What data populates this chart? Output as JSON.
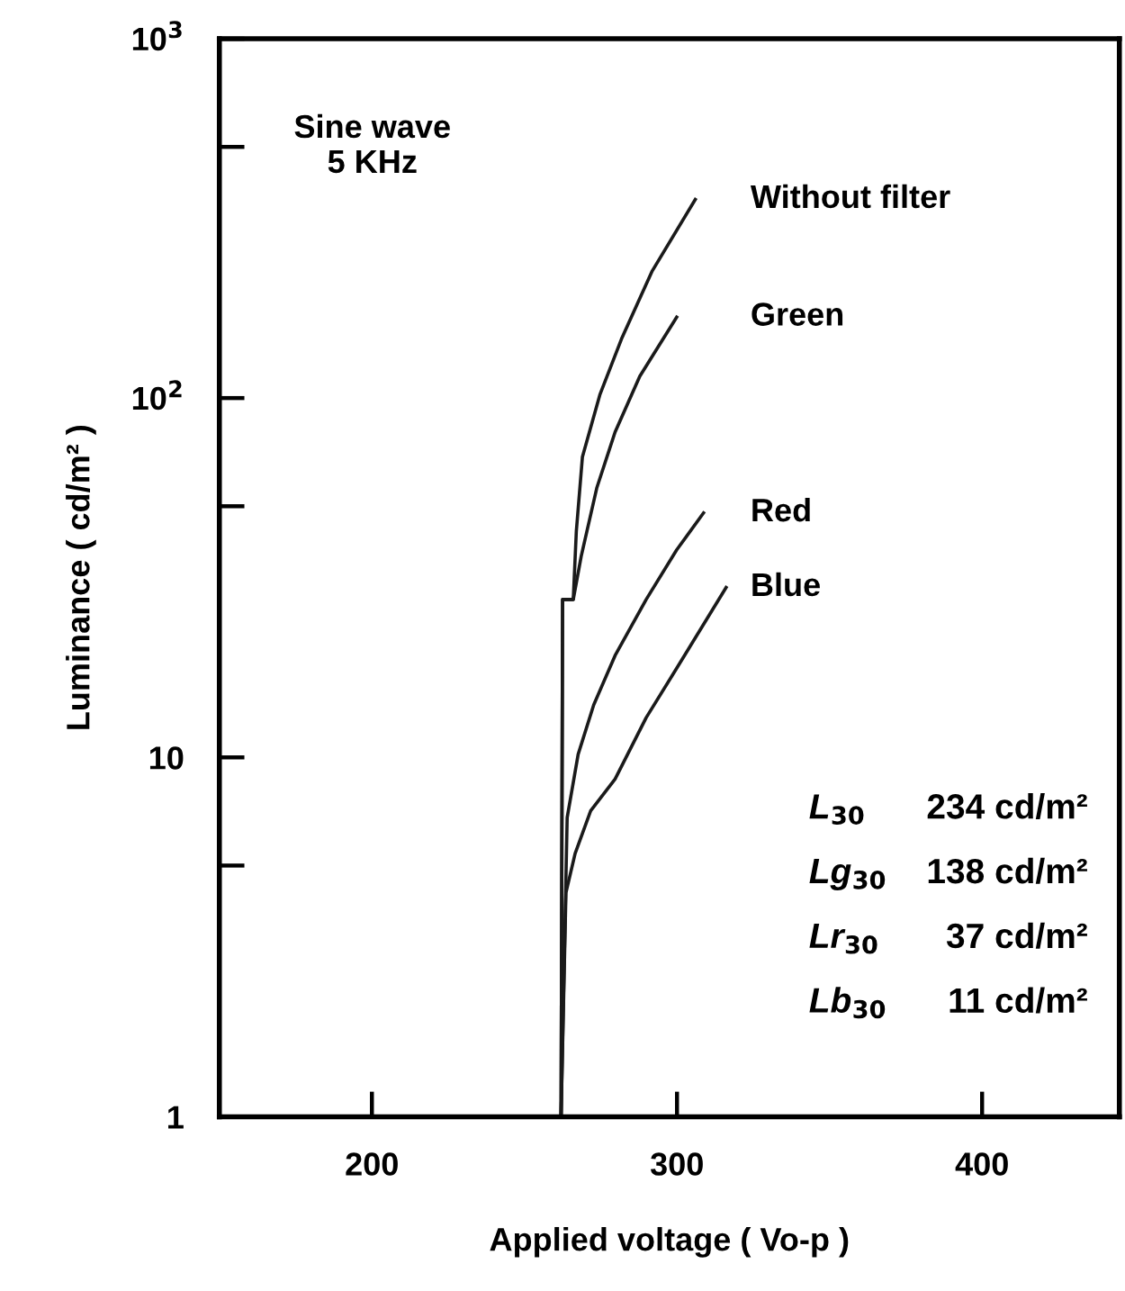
{
  "chart_data": {
    "type": "line",
    "xlabel": "Applied voltage ( Vo-p )",
    "ylabel": "Luminance ( cd/m² )",
    "log": "y",
    "xlim": [
      150,
      445
    ],
    "xticks": [
      200,
      300,
      400
    ],
    "ylim": [
      1,
      1000
    ],
    "yticks": [
      1,
      {
        "value": 5,
        "label": null
      },
      10,
      {
        "value": 50,
        "label": null
      },
      {
        "value": 100,
        "label": "10$^{2}$"
      },
      {
        "value": 500,
        "label": null
      },
      {
        "value": 1000,
        "label": "10$^{3}$"
      }
    ],
    "grid": false,
    "legend": false,
    "marker": "none",
    "line_style": "solid",
    "series": [
      {
        "name": "Without filter",
        "color": "#1a1a1a",
        "x": [
          262,
          262.5,
          266.0,
          267.0,
          269.0,
          274.7,
          281.8,
          291.9,
          306.0
        ],
        "values": [
          1,
          27.5,
          27.5,
          42.6,
          68.6,
          102,
          146,
          226,
          357
        ]
      },
      {
        "name": "Green",
        "color": "#1a1a1a",
        "x": [
          262,
          262.5,
          266.0,
          268.6,
          273.7,
          279.7,
          287.8,
          299.9
        ],
        "values": [
          1,
          27.5,
          27.5,
          36.3,
          56.2,
          80.4,
          115,
          168
        ]
      },
      {
        "name": "Red",
        "color": "#1a1a1a",
        "x": [
          262,
          264.0,
          267.6,
          272.7,
          279.7,
          289.9,
          299.9,
          308.7
        ],
        "values": [
          1,
          6.8,
          10.2,
          14.0,
          19.2,
          27.5,
          37.8,
          47.9
        ]
      },
      {
        "name": "Blue",
        "color": "#1a1a1a",
        "x": [
          262,
          263.6,
          266.6,
          271.7,
          279.7,
          289.9,
          299.9,
          316.1
        ],
        "values": [
          1,
          4.2,
          5.4,
          7.1,
          8.7,
          12.9,
          17.7,
          29.7
        ]
      }
    ],
    "annotations": [
      "Sine wave\n5 KHz",
      "L$_{30}$",
      "234 cd/m²",
      "Lg$_{30}$",
      "138 cd/m²",
      "Lr$_{30}$",
      "37 cd/m²",
      "Lb$_{30}$",
      "11 cd/m²"
    ]
  }
}
